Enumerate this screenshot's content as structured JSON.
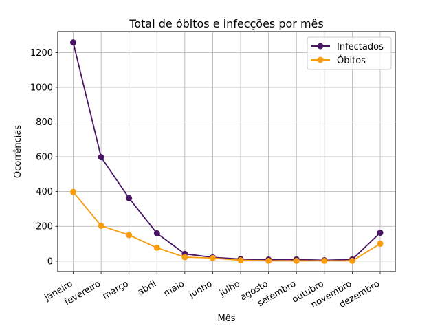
{
  "chart_data": {
    "type": "line",
    "title": "Total de óbitos e infecções por mês",
    "xlabel": "Mês",
    "ylabel": "Ocorrências",
    "categories": [
      "janeiro",
      "fevereiro",
      "março",
      "abril",
      "maio",
      "junho",
      "julho",
      "agosto",
      "setembro",
      "outubro",
      "novembro",
      "dezembro"
    ],
    "ylim": [
      -60,
      1320
    ],
    "yticks": [
      0,
      200,
      400,
      600,
      800,
      1000,
      1200
    ],
    "grid": true,
    "legend_position": "top-right",
    "series": [
      {
        "name": "Infectados",
        "color": "#4a1466",
        "values": [
          1258,
          598,
          362,
          160,
          42,
          22,
          12,
          9,
          10,
          5,
          10,
          163
        ]
      },
      {
        "name": "Óbitos",
        "color": "#f89c10",
        "values": [
          398,
          203,
          150,
          77,
          23,
          18,
          5,
          2,
          2,
          2,
          2,
          100
        ]
      }
    ]
  }
}
